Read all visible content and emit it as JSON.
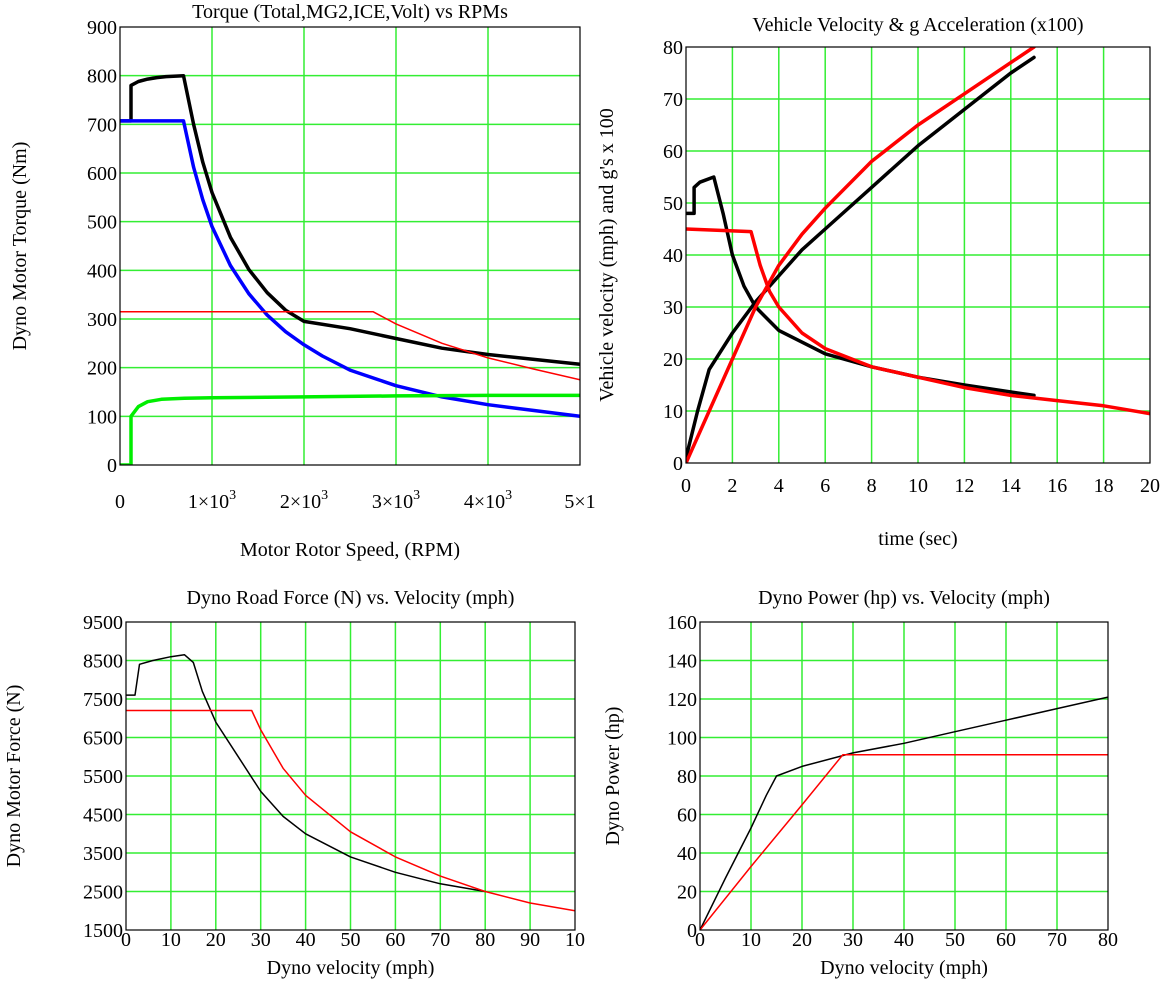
{
  "colors": {
    "grid": "#33ee33",
    "black": "#000000",
    "blue": "#0000ff",
    "green": "#00ee00",
    "red": "#ff0000"
  },
  "chart_data": [
    {
      "type": "line",
      "title": "Torque (Total,MG2,ICE,Volt) vs RPMs",
      "xlabel": "Motor Rotor Speed,  (RPM)",
      "ylabel": "Dyno Motor Torque (Nm)",
      "xlim": [
        0,
        5000
      ],
      "ylim": [
        0,
        900
      ],
      "grid": true,
      "x_ticks": [
        {
          "v": 0,
          "m": "0",
          "e": ""
        },
        {
          "v": 1000,
          "m": "1×10",
          "e": "3"
        },
        {
          "v": 2000,
          "m": "2×10",
          "e": "3"
        },
        {
          "v": 3000,
          "m": "3×10",
          "e": "3"
        },
        {
          "v": 4000,
          "m": "4×10",
          "e": "3"
        },
        {
          "v": 5000,
          "m": "5×1",
          "e": ""
        }
      ],
      "y_ticks": [
        0,
        100,
        200,
        300,
        400,
        500,
        600,
        700,
        800,
        900
      ],
      "series": [
        {
          "color": "#000000",
          "width": 3.5,
          "points": [
            [
              0,
              707
            ],
            [
              120,
              707
            ],
            [
              120,
              780
            ],
            [
              200,
              788
            ],
            [
              300,
              793
            ],
            [
              400,
              796
            ],
            [
              500,
              798
            ],
            [
              690,
              800
            ],
            [
              800,
              700
            ],
            [
              900,
              622
            ],
            [
              1000,
              560
            ],
            [
              1200,
              468
            ],
            [
              1400,
              402
            ],
            [
              1600,
              354
            ],
            [
              1800,
              318
            ],
            [
              2000,
              295
            ],
            [
              2500,
              280
            ],
            [
              3000,
              260
            ],
            [
              3500,
              240
            ],
            [
              4000,
              227
            ],
            [
              4500,
              217
            ],
            [
              5000,
              207
            ]
          ]
        },
        {
          "color": "#0000ff",
          "width": 3.5,
          "points": [
            [
              0,
              707
            ],
            [
              690,
              707
            ],
            [
              800,
              612
            ],
            [
              900,
              545
            ],
            [
              1000,
              490
            ],
            [
              1200,
              410
            ],
            [
              1400,
              352
            ],
            [
              1600,
              308
            ],
            [
              1800,
              274
            ],
            [
              2000,
              247
            ],
            [
              2200,
              224
            ],
            [
              2500,
              195
            ],
            [
              3000,
              163
            ],
            [
              3500,
              140
            ],
            [
              4000,
              124
            ],
            [
              4500,
              112
            ],
            [
              5000,
              100
            ]
          ]
        },
        {
          "color": "#00ee00",
          "width": 3.5,
          "points": [
            [
              0,
              0
            ],
            [
              120,
              0
            ],
            [
              120,
              100
            ],
            [
              200,
              120
            ],
            [
              300,
              130
            ],
            [
              450,
              135
            ],
            [
              700,
              137
            ],
            [
              1000,
              138
            ],
            [
              2000,
              140
            ],
            [
              3000,
              142
            ],
            [
              4000,
              143
            ],
            [
              5000,
              143
            ]
          ]
        },
        {
          "color": "#ff0000",
          "width": 1.5,
          "points": [
            [
              0,
              315
            ],
            [
              2750,
              315
            ],
            [
              3000,
              290
            ],
            [
              3500,
              250
            ],
            [
              4000,
              220
            ],
            [
              4500,
              197
            ],
            [
              5000,
              175
            ]
          ]
        }
      ]
    },
    {
      "type": "line",
      "title": "Vehicle Velocity & g Acceleration (x100)",
      "xlabel": "time (sec)",
      "ylabel": "Vehicle velocity (mph) and g's x 100",
      "xlim": [
        0,
        20
      ],
      "ylim": [
        0,
        80
      ],
      "grid": true,
      "x_ticks": [
        {
          "v": 0,
          "m": "0",
          "e": ""
        },
        {
          "v": 2,
          "m": "2",
          "e": ""
        },
        {
          "v": 4,
          "m": "4",
          "e": ""
        },
        {
          "v": 6,
          "m": "6",
          "e": ""
        },
        {
          "v": 8,
          "m": "8",
          "e": ""
        },
        {
          "v": 10,
          "m": "10",
          "e": ""
        },
        {
          "v": 12,
          "m": "12",
          "e": ""
        },
        {
          "v": 14,
          "m": "14",
          "e": ""
        },
        {
          "v": 16,
          "m": "16",
          "e": ""
        },
        {
          "v": 18,
          "m": "18",
          "e": ""
        },
        {
          "v": 20,
          "m": "20",
          "e": ""
        }
      ],
      "y_ticks": [
        0,
        10,
        20,
        30,
        40,
        50,
        60,
        70,
        80
      ],
      "series": [
        {
          "color": "#000000",
          "width": 3.5,
          "points": [
            [
              0,
              1
            ],
            [
              0.5,
              10
            ],
            [
              1,
              18
            ],
            [
              2,
              25
            ],
            [
              3,
              31
            ],
            [
              4,
              36
            ],
            [
              5,
              41
            ],
            [
              6,
              45
            ],
            [
              8,
              53
            ],
            [
              10,
              61
            ],
            [
              12,
              68
            ],
            [
              14,
              75
            ],
            [
              15,
              78
            ]
          ]
        },
        {
          "color": "#000000",
          "width": 3.5,
          "points": [
            [
              0,
              48
            ],
            [
              0.35,
              48
            ],
            [
              0.35,
              53
            ],
            [
              0.6,
              54
            ],
            [
              1.2,
              55
            ],
            [
              1.6,
              48
            ],
            [
              2,
              40
            ],
            [
              2.5,
              34
            ],
            [
              3,
              30
            ],
            [
              4,
              25.5
            ],
            [
              6,
              21
            ],
            [
              8,
              18.5
            ],
            [
              10,
              16.5
            ],
            [
              12,
              15
            ],
            [
              15,
              13
            ]
          ]
        },
        {
          "color": "#ff0000",
          "width": 3.5,
          "points": [
            [
              0,
              0
            ],
            [
              1,
              10
            ],
            [
              2,
              20
            ],
            [
              3,
              30
            ],
            [
              4,
              38
            ],
            [
              5,
              44
            ],
            [
              6,
              49
            ],
            [
              8,
              58
            ],
            [
              10,
              65
            ],
            [
              12,
              71
            ],
            [
              14,
              77
            ],
            [
              15,
              80
            ]
          ]
        },
        {
          "color": "#ff0000",
          "width": 3.5,
          "points": [
            [
              0,
              45
            ],
            [
              2.8,
              44.5
            ],
            [
              3.2,
              38
            ],
            [
              3.6,
              33
            ],
            [
              4,
              30
            ],
            [
              5,
              25
            ],
            [
              6,
              22
            ],
            [
              8,
              18.5
            ],
            [
              10,
              16.5
            ],
            [
              12,
              14.5
            ],
            [
              14,
              13
            ],
            [
              16,
              12
            ],
            [
              18,
              11
            ],
            [
              20,
              9.5
            ]
          ]
        }
      ]
    },
    {
      "type": "line",
      "title": "Dyno Road Force (N) vs. Velocity (mph)",
      "xlabel": "Dyno velocity (mph)",
      "ylabel": "Dyno Motor Force (N)",
      "xlim": [
        0,
        100
      ],
      "ylim": [
        1500,
        9500
      ],
      "grid": true,
      "x_ticks": [
        {
          "v": 0,
          "m": "0",
          "e": ""
        },
        {
          "v": 10,
          "m": "10",
          "e": ""
        },
        {
          "v": 20,
          "m": "20",
          "e": ""
        },
        {
          "v": 30,
          "m": "30",
          "e": ""
        },
        {
          "v": 40,
          "m": "40",
          "e": ""
        },
        {
          "v": 50,
          "m": "50",
          "e": ""
        },
        {
          "v": 60,
          "m": "60",
          "e": ""
        },
        {
          "v": 70,
          "m": "70",
          "e": ""
        },
        {
          "v": 80,
          "m": "80",
          "e": ""
        },
        {
          "v": 90,
          "m": "90",
          "e": ""
        },
        {
          "v": 100,
          "m": "10",
          "e": ""
        }
      ],
      "y_ticks": [
        1500,
        2500,
        3500,
        4500,
        5500,
        6500,
        7500,
        8500,
        9500
      ],
      "series": [
        {
          "color": "#000000",
          "width": 1.5,
          "points": [
            [
              0,
              7600
            ],
            [
              2,
              7600
            ],
            [
              3,
              8400
            ],
            [
              6,
              8500
            ],
            [
              10,
              8600
            ],
            [
              13,
              8650
            ],
            [
              15,
              8450
            ],
            [
              17,
              7700
            ],
            [
              20,
              6900
            ],
            [
              25,
              6000
            ],
            [
              30,
              5100
            ],
            [
              35,
              4450
            ],
            [
              40,
              4000
            ],
            [
              50,
              3400
            ],
            [
              60,
              3000
            ],
            [
              70,
              2700
            ],
            [
              80,
              2500
            ]
          ]
        },
        {
          "color": "#ff0000",
          "width": 1.5,
          "points": [
            [
              0,
              7200
            ],
            [
              28,
              7200
            ],
            [
              30,
              6700
            ],
            [
              35,
              5700
            ],
            [
              40,
              5000
            ],
            [
              50,
              4050
            ],
            [
              60,
              3400
            ],
            [
              70,
              2900
            ],
            [
              80,
              2500
            ],
            [
              90,
              2200
            ],
            [
              100,
              2000
            ]
          ]
        }
      ]
    },
    {
      "type": "line",
      "title": "Dyno Power (hp) vs. Velocity (mph)",
      "xlabel": "Dyno velocity (mph)",
      "ylabel": "Dyno Power (hp)",
      "xlim": [
        0,
        80
      ],
      "ylim": [
        0,
        160
      ],
      "grid": true,
      "x_ticks": [
        {
          "v": 0,
          "m": "0",
          "e": ""
        },
        {
          "v": 10,
          "m": "10",
          "e": ""
        },
        {
          "v": 20,
          "m": "20",
          "e": ""
        },
        {
          "v": 30,
          "m": "30",
          "e": ""
        },
        {
          "v": 40,
          "m": "40",
          "e": ""
        },
        {
          "v": 50,
          "m": "50",
          "e": ""
        },
        {
          "v": 60,
          "m": "60",
          "e": ""
        },
        {
          "v": 70,
          "m": "70",
          "e": ""
        },
        {
          "v": 80,
          "m": "80",
          "e": ""
        }
      ],
      "y_ticks": [
        0,
        20,
        40,
        60,
        80,
        100,
        120,
        140,
        160
      ],
      "series": [
        {
          "color": "#000000",
          "width": 1.5,
          "points": [
            [
              0,
              0
            ],
            [
              5,
              27
            ],
            [
              10,
              53
            ],
            [
              13,
              70
            ],
            [
              15,
              80
            ],
            [
              20,
              85
            ],
            [
              30,
              92
            ],
            [
              40,
              97
            ],
            [
              50,
              103
            ],
            [
              60,
              109
            ],
            [
              70,
              115
            ],
            [
              80,
              121
            ]
          ]
        },
        {
          "color": "#ff0000",
          "width": 1.5,
          "points": [
            [
              0,
              0
            ],
            [
              10,
              33
            ],
            [
              20,
              65
            ],
            [
              28,
              91
            ],
            [
              40,
              91
            ],
            [
              50,
              91
            ],
            [
              60,
              91
            ],
            [
              70,
              91
            ],
            [
              80,
              91
            ]
          ]
        }
      ]
    }
  ]
}
